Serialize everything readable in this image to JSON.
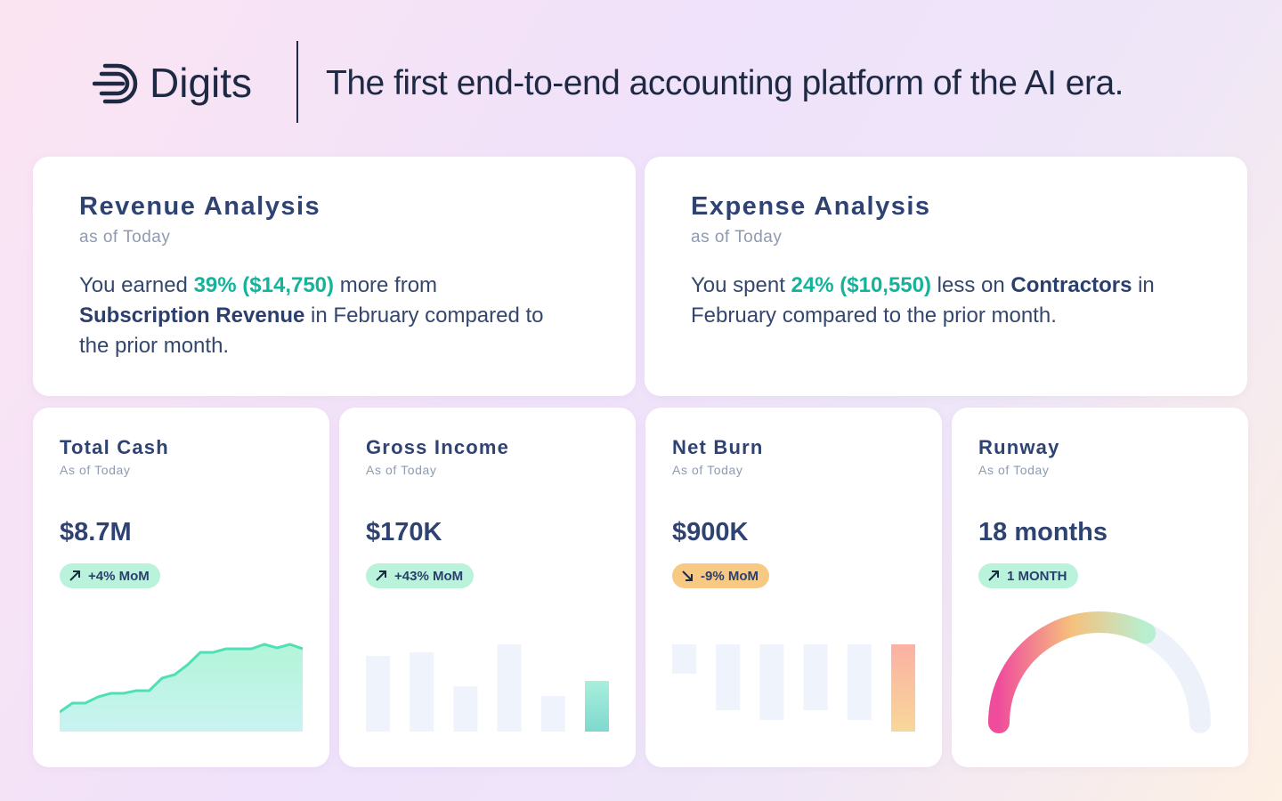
{
  "header": {
    "brand": "Digits",
    "tagline": "The first end-to-end accounting platform of the AI era."
  },
  "insights": [
    {
      "title": "Revenue Analysis",
      "subtitle": "as of Today",
      "text": [
        {
          "text": "You earned ",
          "style": "plain"
        },
        {
          "text": "39% ($14,750)",
          "style": "highlight"
        },
        {
          "text": " more from ",
          "style": "plain"
        },
        {
          "text": "Subscription Revenue",
          "style": "bold"
        },
        {
          "text": " in February compared to the prior month.",
          "style": "plain"
        }
      ]
    },
    {
      "title": "Expense Analysis",
      "subtitle": "as of Today",
      "text": [
        {
          "text": "You spent ",
          "style": "plain"
        },
        {
          "text": "24% ($10,550)",
          "style": "highlight"
        },
        {
          "text": " less on ",
          "style": "plain"
        },
        {
          "text": "Contractors",
          "style": "bold"
        },
        {
          "text": " in February compared to the prior month.",
          "style": "plain"
        }
      ]
    }
  ],
  "metrics": [
    {
      "title": "Total Cash",
      "subtitle": "As of Today",
      "value": "$8.7M",
      "change": "+4% MoM",
      "trend": "up",
      "chart": {
        "type": "area",
        "ylim": [
          0,
          100
        ],
        "values": [
          22,
          32,
          32,
          39,
          43,
          43,
          46,
          46,
          60,
          64,
          75,
          89,
          89,
          93,
          93,
          93,
          98,
          94,
          98,
          93
        ]
      }
    },
    {
      "title": "Gross Income",
      "subtitle": "As of Today",
      "value": "$170K",
      "change": "+43% MoM",
      "trend": "up",
      "chart": {
        "type": "bar",
        "ylim": [
          0,
          100
        ],
        "values": [
          85,
          89,
          51,
          98,
          40,
          57
        ]
      }
    },
    {
      "title": "Net Burn",
      "subtitle": "As of Today",
      "value": "$900K",
      "change": "-9% MoM",
      "trend": "down",
      "chart": {
        "type": "hanging-bar",
        "ylim": [
          0,
          100
        ],
        "values": [
          33,
          74,
          85,
          74,
          85,
          98
        ]
      }
    },
    {
      "title": "Runway",
      "subtitle": "As of Today",
      "value": "18 months",
      "change": "1 MONTH",
      "trend": "up",
      "chart": {
        "type": "gauge",
        "ylim": [
          0,
          100
        ],
        "value": 65
      }
    }
  ]
}
